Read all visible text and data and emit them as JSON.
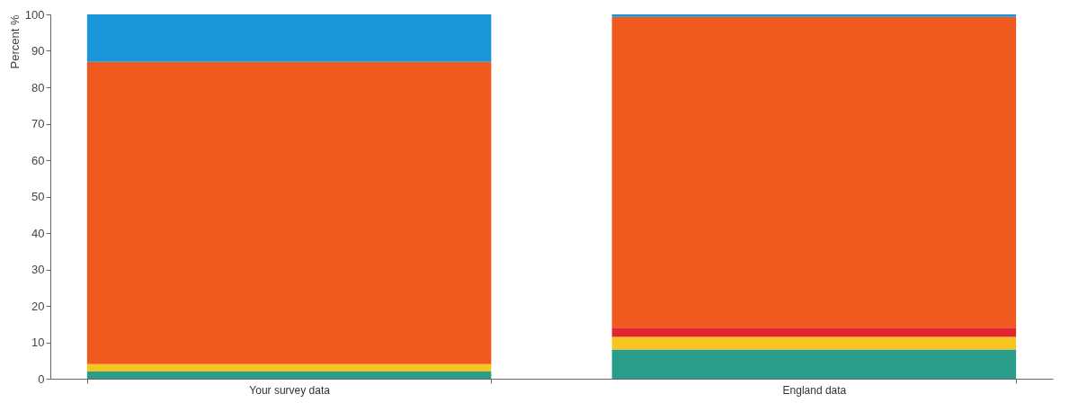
{
  "chart_data": {
    "type": "bar",
    "stacked": true,
    "ylabel": "Percent %",
    "categories": [
      "Your survey data",
      "England data"
    ],
    "series": [
      {
        "color": "#2a9d8a",
        "values": [
          2,
          8
        ]
      },
      {
        "color": "#f7c520",
        "values": [
          2,
          3.5
        ]
      },
      {
        "color": "#e0262e",
        "values": [
          0,
          2.5
        ]
      },
      {
        "color": "#f05a1e",
        "values": [
          83,
          85.3
        ]
      },
      {
        "color": "#1a96d8",
        "values": [
          13,
          0.7
        ]
      }
    ],
    "ylim": [
      0,
      100
    ],
    "yticks": [
      0,
      10,
      20,
      30,
      40,
      50,
      60,
      70,
      80,
      90,
      100
    ],
    "grid": false,
    "legend": false
  }
}
